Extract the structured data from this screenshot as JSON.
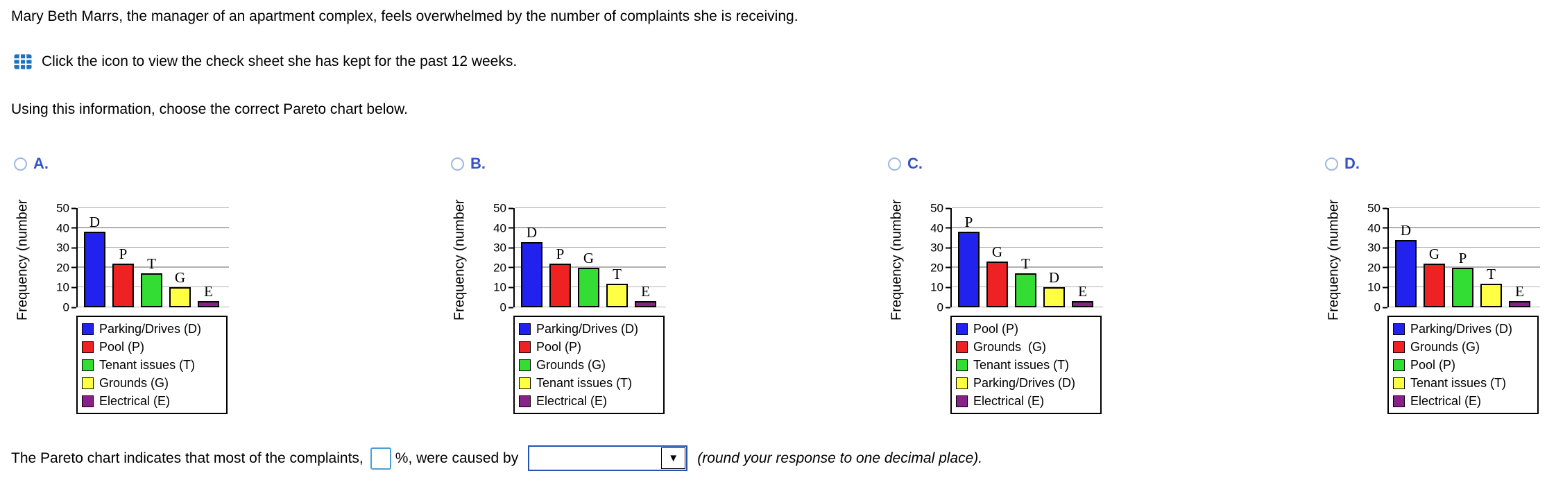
{
  "page": {
    "background": "#ffffff"
  },
  "problem": {
    "intro": "Mary Beth Marrs, the manager of an apartment complex, feels overwhelmed by the number of complaints she is receiving.",
    "check_sheet_icon": "table-grid-icon",
    "check_sheet_text": "Click the icon to view the check sheet she has kept for the past 12 weeks.",
    "instruction": "Using this information, choose the correct Pareto chart below."
  },
  "options": [
    {
      "label": "A.",
      "selected": false,
      "chart_data": {
        "type": "bar",
        "ylabel": "Frequency (number",
        "ylim": [
          0,
          50
        ],
        "yticks": [
          0,
          10,
          20,
          30,
          40,
          50
        ],
        "categories": [
          "D",
          "P",
          "T",
          "G",
          "E"
        ],
        "values": [
          38,
          22,
          17,
          10,
          3
        ],
        "bar_colors": [
          "#2222ee",
          "#ee2222",
          "#33dd33",
          "#ffff44",
          "#882288"
        ],
        "grid": true,
        "legend_position": "below-left",
        "legend": [
          {
            "label": "Parking/Drives (D)",
            "color": "#2222ee"
          },
          {
            "label": "Pool (P)",
            "color": "#ee2222"
          },
          {
            "label": "Tenant issues (T)",
            "color": "#33dd33"
          },
          {
            "label": "Grounds (G)",
            "color": "#ffff44"
          },
          {
            "label": "Electrical (E)",
            "color": "#882288"
          }
        ]
      }
    },
    {
      "label": "B.",
      "selected": false,
      "chart_data": {
        "type": "bar",
        "ylabel": "Frequency (number",
        "ylim": [
          0,
          50
        ],
        "yticks": [
          0,
          10,
          20,
          30,
          40,
          50
        ],
        "categories": [
          "D",
          "P",
          "G",
          "T",
          "E"
        ],
        "values": [
          33,
          22,
          20,
          12,
          3
        ],
        "bar_colors": [
          "#2222ee",
          "#ee2222",
          "#33dd33",
          "#ffff44",
          "#882288"
        ],
        "grid": true,
        "legend_position": "below-left",
        "legend": [
          {
            "label": "Parking/Drives (D)",
            "color": "#2222ee"
          },
          {
            "label": "Pool (P)",
            "color": "#ee2222"
          },
          {
            "label": "Grounds (G)",
            "color": "#33dd33"
          },
          {
            "label": "Tenant issues (T)",
            "color": "#ffff44"
          },
          {
            "label": "Electrical (E)",
            "color": "#882288"
          }
        ]
      }
    },
    {
      "label": "C.",
      "selected": false,
      "chart_data": {
        "type": "bar",
        "ylabel": "Frequency (number",
        "ylim": [
          0,
          50
        ],
        "yticks": [
          0,
          10,
          20,
          30,
          40,
          50
        ],
        "categories": [
          "P",
          "G",
          "T",
          "D",
          "E"
        ],
        "values": [
          38,
          23,
          17,
          10,
          3
        ],
        "bar_colors": [
          "#2222ee",
          "#ee2222",
          "#33dd33",
          "#ffff44",
          "#882288"
        ],
        "grid": true,
        "legend_position": "below-left",
        "legend": [
          {
            "label": "Pool (P)",
            "color": "#2222ee"
          },
          {
            "label": "Grounds  (G)",
            "color": "#ee2222"
          },
          {
            "label": "Tenant issues (T)",
            "color": "#33dd33"
          },
          {
            "label": "Parking/Drives (D)",
            "color": "#ffff44"
          },
          {
            "label": "Electrical (E)",
            "color": "#882288"
          }
        ]
      }
    },
    {
      "label": "D.",
      "selected": false,
      "chart_data": {
        "type": "bar",
        "ylabel": "Frequency (number",
        "ylim": [
          0,
          50
        ],
        "yticks": [
          0,
          10,
          20,
          30,
          40,
          50
        ],
        "categories": [
          "D",
          "G",
          "P",
          "T",
          "E"
        ],
        "values": [
          34,
          22,
          20,
          12,
          3
        ],
        "bar_colors": [
          "#2222ee",
          "#ee2222",
          "#33dd33",
          "#ffff44",
          "#882288"
        ],
        "grid": true,
        "legend_position": "below-left",
        "legend": [
          {
            "label": "Parking/Drives (D)",
            "color": "#2222ee"
          },
          {
            "label": "Grounds (G)",
            "color": "#ee2222"
          },
          {
            "label": "Pool (P)",
            "color": "#33dd33"
          },
          {
            "label": "Tenant issues (T)",
            "color": "#ffff44"
          },
          {
            "label": "Electrical (E)",
            "color": "#882288"
          }
        ]
      }
    }
  ],
  "answer_line": {
    "prefix": "The Pareto chart indicates that most of the complaints,",
    "percent_value": "",
    "mid": "%, were caused by",
    "dropdown_value": "",
    "dropdown_arrow": "▼",
    "note": "(round your response to one decimal place)."
  }
}
